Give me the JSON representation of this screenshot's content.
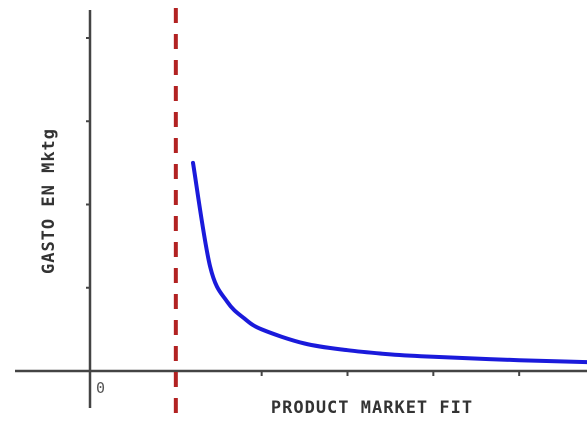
{
  "chart_data": {
    "type": "line",
    "title": "",
    "xlabel": "PRODUCT MARKET FIT",
    "ylabel": "GASTO EN Mktg",
    "origin_label": "0",
    "xlim": [
      0,
      6
    ],
    "ylim": [
      0,
      4
    ],
    "x_ticks": [
      1,
      2,
      3,
      4,
      5
    ],
    "y_ticks": [
      1,
      2,
      3,
      4
    ],
    "grid": false,
    "vertical_line": {
      "x": 1,
      "style": "dashed",
      "color": "#b22222"
    },
    "series": [
      {
        "color": "#1a1adb",
        "function": "y = 0.5 / (x - 1)",
        "points": [
          [
            1.2,
            2.5
          ],
          [
            1.4,
            1.25
          ],
          [
            1.6,
            0.83
          ],
          [
            1.8,
            0.63
          ],
          [
            2.0,
            0.5
          ],
          [
            2.5,
            0.33
          ],
          [
            3.0,
            0.25
          ],
          [
            3.5,
            0.2
          ],
          [
            4.0,
            0.17
          ],
          [
            5.0,
            0.13
          ],
          [
            6.0,
            0.1
          ]
        ]
      }
    ]
  }
}
